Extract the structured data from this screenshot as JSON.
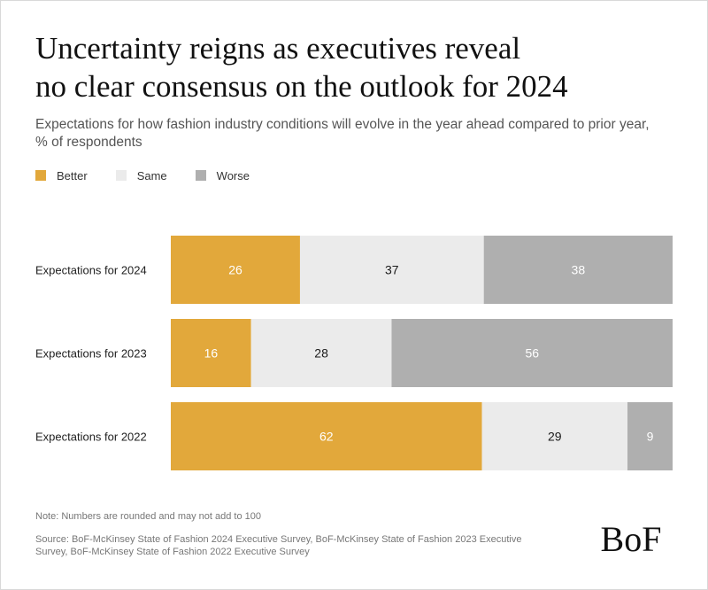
{
  "title_lines": [
    "Uncertainty reigns as executives reveal",
    "no clear consensus on the outlook for 2024"
  ],
  "subtitle_lines": [
    "Expectations for how fashion industry conditions will evolve in the year ahead compared to prior year,",
    "% of respondents"
  ],
  "legend": [
    {
      "label": "Better",
      "color": "#E2A83B"
    },
    {
      "label": "Same",
      "color": "#EBEBEB"
    },
    {
      "label": "Worse",
      "color": "#AFAFAF"
    }
  ],
  "chart_data": {
    "type": "bar",
    "orientation": "horizontal",
    "stacked": true,
    "categories": [
      "Expectations for 2024",
      "Expectations for 2023",
      "Expectations for 2022"
    ],
    "series": [
      {
        "name": "Better",
        "values": [
          26,
          16,
          62
        ],
        "color": "#E2A83B",
        "label_color": "#ffffff"
      },
      {
        "name": "Same",
        "values": [
          37,
          28,
          29
        ],
        "color": "#EBEBEB",
        "label_color": "#1a1a1a"
      },
      {
        "name": "Worse",
        "values": [
          38,
          56,
          9
        ],
        "color": "#AFAFAF",
        "label_color": "#ffffff"
      }
    ],
    "xlim": [
      0,
      100
    ],
    "grid": false,
    "legend_position": "top-left"
  },
  "note": "Note: Numbers are rounded and may not add to 100",
  "source": "Source: BoF-McKinsey State of Fashion 2024 Executive Survey, BoF-McKinsey State of Fashion 2023 Executive Survey, BoF-McKinsey State of Fashion 2022 Executive Survey",
  "logo_text": "BoF"
}
